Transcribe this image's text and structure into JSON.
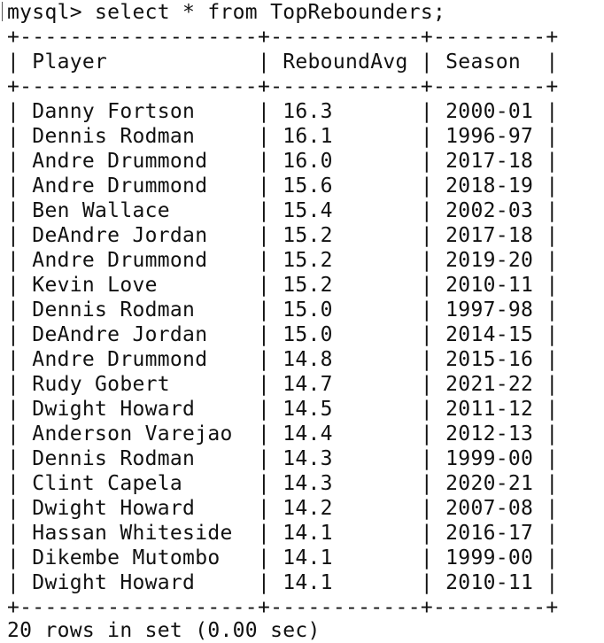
{
  "prompt": "mysql> select * from TopRebounders;",
  "border": "+-------------------+------------+---------+",
  "header": "| Player            | ReboundAvg | Season  |",
  "columns": [
    "Player",
    "ReboundAvg",
    "Season"
  ],
  "rows": [
    {
      "player": "Danny Fortson",
      "rebound_avg": "16.3",
      "season": "2000-01"
    },
    {
      "player": "Dennis Rodman",
      "rebound_avg": "16.1",
      "season": "1996-97"
    },
    {
      "player": "Andre Drummond",
      "rebound_avg": "16.0",
      "season": "2017-18"
    },
    {
      "player": "Andre Drummond",
      "rebound_avg": "15.6",
      "season": "2018-19"
    },
    {
      "player": "Ben Wallace",
      "rebound_avg": "15.4",
      "season": "2002-03"
    },
    {
      "player": "DeAndre Jordan",
      "rebound_avg": "15.2",
      "season": "2017-18"
    },
    {
      "player": "Andre Drummond",
      "rebound_avg": "15.2",
      "season": "2019-20"
    },
    {
      "player": "Kevin Love",
      "rebound_avg": "15.2",
      "season": "2010-11"
    },
    {
      "player": "Dennis Rodman",
      "rebound_avg": "15.0",
      "season": "1997-98"
    },
    {
      "player": "DeAndre Jordan",
      "rebound_avg": "15.0",
      "season": "2014-15"
    },
    {
      "player": "Andre Drummond",
      "rebound_avg": "14.8",
      "season": "2015-16"
    },
    {
      "player": "Rudy Gobert",
      "rebound_avg": "14.7",
      "season": "2021-22"
    },
    {
      "player": "Dwight Howard",
      "rebound_avg": "14.5",
      "season": "2011-12"
    },
    {
      "player": "Anderson Varejao",
      "rebound_avg": "14.4",
      "season": "2012-13"
    },
    {
      "player": "Dennis Rodman",
      "rebound_avg": "14.3",
      "season": "1999-00"
    },
    {
      "player": "Clint Capela",
      "rebound_avg": "14.3",
      "season": "2020-21"
    },
    {
      "player": "Dwight Howard",
      "rebound_avg": "14.2",
      "season": "2007-08"
    },
    {
      "player": "Hassan Whiteside",
      "rebound_avg": "14.1",
      "season": "2016-17"
    },
    {
      "player": "Dikembe Mutombo",
      "rebound_avg": "14.1",
      "season": "1999-00"
    },
    {
      "player": "Dwight Howard",
      "rebound_avg": "14.1",
      "season": "2010-11"
    }
  ],
  "footer": "20 rows in set (0.00 sec)"
}
